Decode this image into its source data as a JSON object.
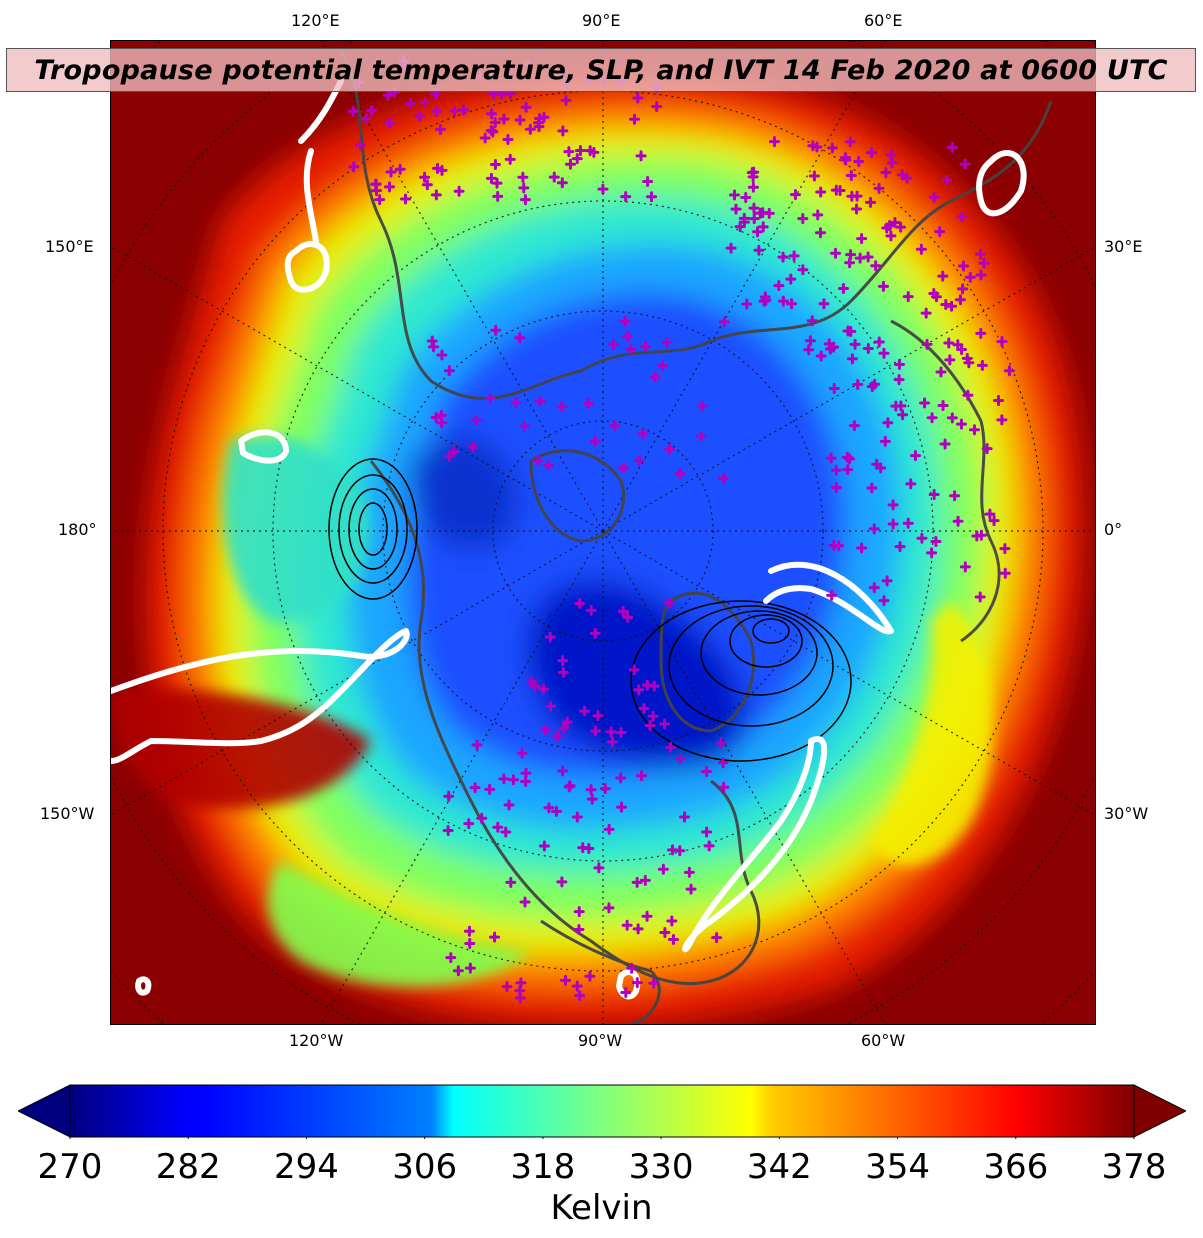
{
  "title": "Tropopause potential temperature, SLP, and IVT 14 Feb 2020 at 0600 UTC",
  "map": {
    "projection": "north-polar",
    "field": "tropopause potential temperature",
    "overlays": [
      "SLP contours",
      "IVT contours (white)",
      "station markers (magenta +)",
      "coastlines",
      "lat/lon grid"
    ]
  },
  "longitude_labels": {
    "top": [
      "120°E",
      "90°E",
      "60°E"
    ],
    "bottom": [
      "120°W",
      "90°W",
      "60°W"
    ],
    "left": [
      "150°E",
      "180°",
      "150°W"
    ],
    "right": [
      "30°E",
      "0°",
      "30°W"
    ]
  },
  "colorbar": {
    "ticks": [
      "270",
      "282",
      "294",
      "306",
      "318",
      "330",
      "342",
      "354",
      "366",
      "378"
    ],
    "min": 270,
    "max": 378,
    "extend": "both",
    "unit": "Kelvin",
    "colormap": "jet"
  },
  "colors": {
    "ivt_contour": "#ffffff",
    "station_marker": "#b000c0",
    "coastline": "#444444",
    "background_warm": "#8b0000"
  }
}
